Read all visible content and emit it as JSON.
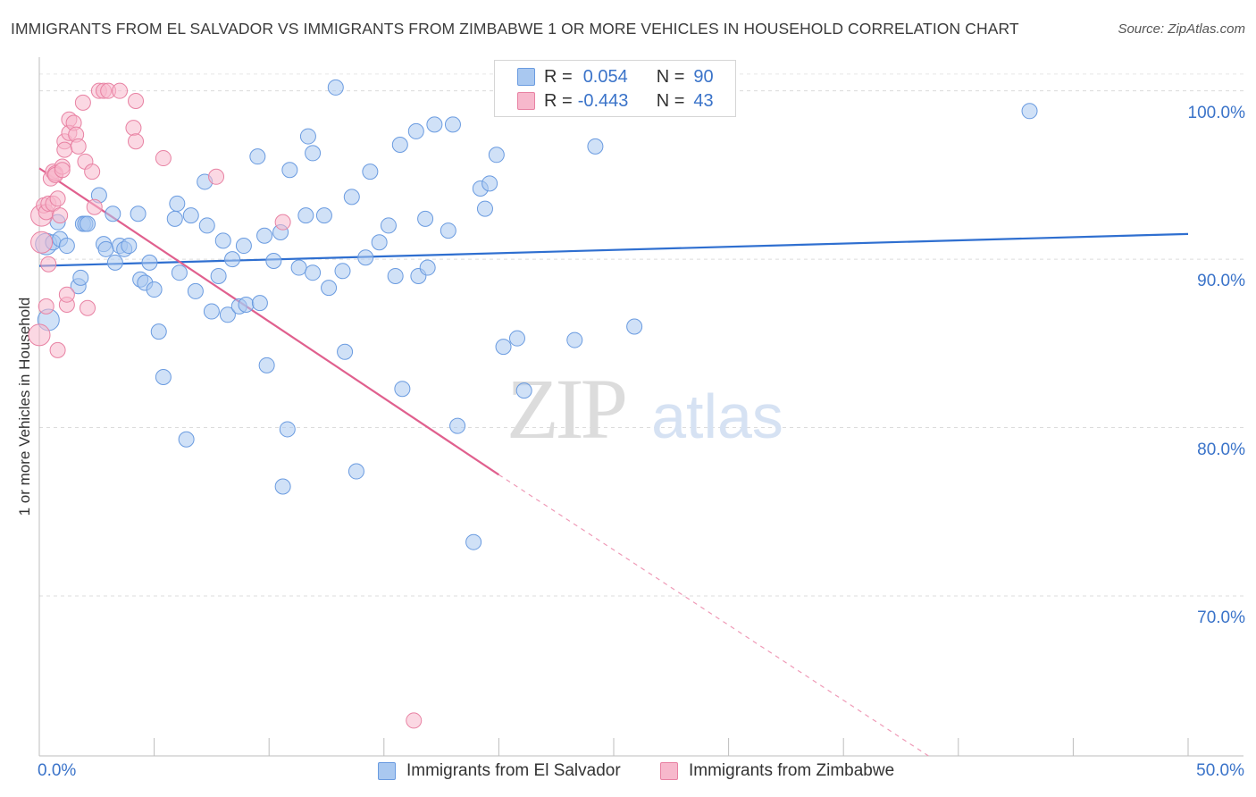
{
  "header": {
    "title": "IMMIGRANTS FROM EL SALVADOR VS IMMIGRANTS FROM ZIMBABWE 1 OR MORE VEHICLES IN HOUSEHOLD CORRELATION CHART",
    "source": "Source: ZipAtlas.com"
  },
  "watermark": {
    "zip": "ZIP",
    "atlas": "atlas"
  },
  "legend": {
    "r_label": "R =",
    "n_label": "N =",
    "rows": [
      {
        "r": "0.054",
        "n": "90",
        "color": "#a9c8f0",
        "border": "#6a9be0"
      },
      {
        "r": "-0.443",
        "n": "43",
        "color": "#f7b8cc",
        "border": "#e882a3"
      }
    ]
  },
  "chart_data": {
    "type": "scatter",
    "title": "IMMIGRANTS FROM EL SALVADOR VS IMMIGRANTS FROM ZIMBABWE 1 OR MORE VEHICLES IN HOUSEHOLD CORRELATION CHART",
    "xlabel": "",
    "ylabel": "1 or more Vehicles in Household",
    "xlim": [
      0,
      50
    ],
    "ylim": [
      60.5,
      102
    ],
    "x_tick_labels": [
      "0.0%",
      "50.0%"
    ],
    "y_ticks": [
      70,
      80,
      90,
      100
    ],
    "y_tick_labels": [
      "70.0%",
      "80.0%",
      "90.0%",
      "100.0%"
    ],
    "grid": "horizontal dashed",
    "legend_position": "bottom",
    "series": [
      {
        "name": "Immigrants from El Salvador",
        "color": "#a9c8f0",
        "stroke": "#6a9be0",
        "trend": {
          "x": [
            0,
            50
          ],
          "y": [
            89.6,
            91.5
          ],
          "color": "#2f6fd0"
        },
        "points": [
          [
            0.3,
            90.9
          ],
          [
            0.4,
            86.4
          ],
          [
            0.6,
            91
          ],
          [
            0.8,
            92.2
          ],
          [
            0.9,
            91.2
          ],
          [
            1.2,
            90.8
          ],
          [
            1.7,
            88.4
          ],
          [
            1.8,
            88.9
          ],
          [
            1.9,
            92.1
          ],
          [
            2,
            92.1
          ],
          [
            2.1,
            92.1
          ],
          [
            2.6,
            93.8
          ],
          [
            2.8,
            90.9
          ],
          [
            2.9,
            90.6
          ],
          [
            3.2,
            92.7
          ],
          [
            3.3,
            89.8
          ],
          [
            3.5,
            90.8
          ],
          [
            3.7,
            90.6
          ],
          [
            3.9,
            90.8
          ],
          [
            4.3,
            92.7
          ],
          [
            4.4,
            88.8
          ],
          [
            4.6,
            88.6
          ],
          [
            4.8,
            89.8
          ],
          [
            5,
            88.2
          ],
          [
            5.2,
            85.7
          ],
          [
            5.4,
            83
          ],
          [
            5.9,
            92.4
          ],
          [
            6,
            93.3
          ],
          [
            6.1,
            89.2
          ],
          [
            6.4,
            79.3
          ],
          [
            6.6,
            92.6
          ],
          [
            6.8,
            88.1
          ],
          [
            7.2,
            94.6
          ],
          [
            7.3,
            92
          ],
          [
            7.5,
            86.9
          ],
          [
            7.8,
            89
          ],
          [
            8,
            91.1
          ],
          [
            8.2,
            86.7
          ],
          [
            8.4,
            90
          ],
          [
            8.7,
            87.2
          ],
          [
            8.9,
            90.8
          ],
          [
            9,
            87.3
          ],
          [
            9.5,
            96.1
          ],
          [
            9.6,
            87.4
          ],
          [
            9.8,
            91.4
          ],
          [
            9.9,
            83.7
          ],
          [
            10.2,
            89.9
          ],
          [
            10.5,
            91.6
          ],
          [
            10.6,
            76.5
          ],
          [
            10.8,
            79.9
          ],
          [
            10.9,
            95.3
          ],
          [
            11.3,
            89.5
          ],
          [
            11.6,
            92.6
          ],
          [
            11.7,
            97.3
          ],
          [
            11.9,
            96.3
          ],
          [
            11.9,
            89.2
          ],
          [
            12.4,
            92.6
          ],
          [
            12.6,
            88.3
          ],
          [
            12.9,
            100.2
          ],
          [
            13.2,
            89.3
          ],
          [
            13.3,
            84.5
          ],
          [
            13.6,
            93.7
          ],
          [
            13.8,
            77.4
          ],
          [
            14.2,
            90.1
          ],
          [
            14.4,
            95.2
          ],
          [
            14.8,
            91
          ],
          [
            15.2,
            92
          ],
          [
            15.5,
            89
          ],
          [
            15.7,
            96.8
          ],
          [
            15.8,
            82.3
          ],
          [
            16.4,
            97.6
          ],
          [
            16.5,
            89
          ],
          [
            16.8,
            92.4
          ],
          [
            16.9,
            89.5
          ],
          [
            17.2,
            98
          ],
          [
            17.8,
            91.7
          ],
          [
            18,
            98
          ],
          [
            18.2,
            80.1
          ],
          [
            18.9,
            73.2
          ],
          [
            19.2,
            94.2
          ],
          [
            19.4,
            93
          ],
          [
            19.6,
            94.5
          ],
          [
            19.9,
            96.2
          ],
          [
            20.2,
            84.8
          ],
          [
            20.8,
            85.3
          ],
          [
            21.1,
            82.2
          ],
          [
            23.3,
            85.2
          ],
          [
            24.2,
            96.7
          ],
          [
            25.9,
            86
          ],
          [
            43.1,
            98.8
          ]
        ]
      },
      {
        "name": "Immigrants from Zimbabwe",
        "color": "#f7b8cc",
        "stroke": "#e882a3",
        "trend": {
          "x": [
            0,
            20
          ],
          "y": [
            95.4,
            77.2
          ],
          "color": "#e0608e",
          "dashed_extension": {
            "x": [
              20,
              38.7
            ],
            "y": [
              77.2,
              60.5
            ]
          }
        },
        "points": [
          [
            0,
            85.5
          ],
          [
            0.1,
            92.6
          ],
          [
            0.2,
            93.2
          ],
          [
            0.3,
            92.8
          ],
          [
            0.4,
            93.3
          ],
          [
            0.4,
            89.7
          ],
          [
            0.5,
            94.8
          ],
          [
            0.6,
            93.3
          ],
          [
            0.6,
            95.2
          ],
          [
            0.7,
            95.1
          ],
          [
            0.7,
            95
          ],
          [
            0.8,
            84.6
          ],
          [
            0.8,
            93.6
          ],
          [
            0.9,
            92.6
          ],
          [
            1,
            95.5
          ],
          [
            1,
            95.3
          ],
          [
            1.1,
            97
          ],
          [
            1.1,
            96.5
          ],
          [
            1.2,
            87.3
          ],
          [
            1.2,
            87.9
          ],
          [
            1.3,
            98.3
          ],
          [
            1.3,
            97.5
          ],
          [
            1.5,
            98.1
          ],
          [
            1.6,
            97.4
          ],
          [
            1.7,
            96.7
          ],
          [
            1.9,
            99.3
          ],
          [
            2,
            95.8
          ],
          [
            2.1,
            87.1
          ],
          [
            2.3,
            95.2
          ],
          [
            2.4,
            93.1
          ],
          [
            2.6,
            100
          ],
          [
            2.8,
            100
          ],
          [
            3,
            100
          ],
          [
            3.5,
            100
          ],
          [
            4.2,
            99.4
          ],
          [
            4.1,
            97.8
          ],
          [
            4.2,
            97
          ],
          [
            5.4,
            96
          ],
          [
            7.7,
            94.9
          ],
          [
            10.6,
            92.2
          ],
          [
            16.3,
            62.6
          ],
          [
            0.1,
            91
          ],
          [
            0.3,
            87.2
          ]
        ]
      }
    ]
  }
}
